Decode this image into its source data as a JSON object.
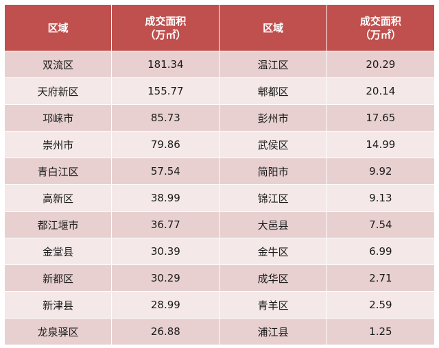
{
  "header": {
    "region_label": "区域",
    "area_label_line1": "成交面积",
    "area_label_line2": "（万㎡）"
  },
  "rows": [
    {
      "left_region": "双流区",
      "left_area": "181.34",
      "right_region": "温江区",
      "right_area": "20.29"
    },
    {
      "left_region": "天府新区",
      "left_area": "155.77",
      "right_region": "郫都区",
      "right_area": "20.14"
    },
    {
      "left_region": "邛崃市",
      "left_area": "85.73",
      "right_region": "彭州市",
      "right_area": "17.65"
    },
    {
      "left_region": "崇州市",
      "left_area": "79.86",
      "right_region": "武侯区",
      "right_area": "14.99"
    },
    {
      "left_region": "青白江区",
      "left_area": "57.54",
      "right_region": "简阳市",
      "right_area": "9.92"
    },
    {
      "left_region": "高新区",
      "left_area": "38.99",
      "right_region": "锦江区",
      "right_area": "9.13"
    },
    {
      "left_region": "都江堰市",
      "left_area": "36.77",
      "right_region": "大邑县",
      "right_area": "7.54"
    },
    {
      "left_region": "金堂县",
      "left_area": "30.39",
      "right_region": "金牛区",
      "right_area": "6.99"
    },
    {
      "left_region": "新都区",
      "left_area": "30.29",
      "right_region": "成华区",
      "right_area": "2.71"
    },
    {
      "left_region": "新津县",
      "left_area": "28.99",
      "right_region": "青羊区",
      "right_area": "2.59"
    },
    {
      "left_region": "龙泉驿区",
      "left_area": "26.88",
      "right_region": "浦江县",
      "right_area": "1.25"
    }
  ],
  "colors": {
    "header_bg": "#c0504d",
    "row_odd": "#e8d0d0",
    "row_even": "#f4e8e8"
  }
}
